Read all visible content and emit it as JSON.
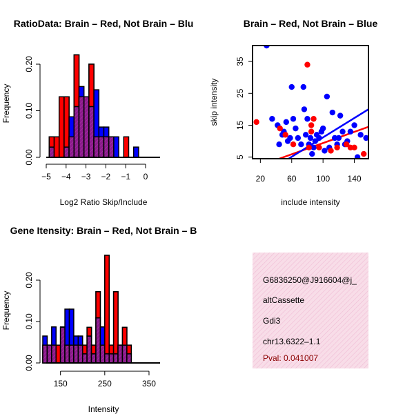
{
  "colors": {
    "red": "#ff0000",
    "blue": "#0000ff",
    "purple": "#8b1a8b",
    "black": "#000000",
    "dark_red": "#8b0000",
    "info_bg": "#f8dde8",
    "hatch": "#f0bcd4"
  },
  "chart_data": [
    {
      "id": "ratio-hist",
      "type": "bar",
      "title": "RatioData: Brain – Red, Not Brain – Blu",
      "xlabel": "Log2 Ratio Skip/Include",
      "ylabel": "Frequency",
      "xlim": [
        -5,
        0.8
      ],
      "ylim": [
        0,
        0.24
      ],
      "xticks": [
        -5,
        -4,
        -3,
        -2,
        -1,
        0
      ],
      "xtick_labels": [
        "−5",
        "−4",
        "−3",
        "−2",
        "−1",
        "0"
      ],
      "yticks": [
        0.0,
        0.1,
        0.2
      ],
      "ytick_labels": [
        "0.00",
        "0.10",
        "0.20"
      ],
      "bins_start": -4.85,
      "bin_width": 0.25,
      "series": [
        {
          "name": "Brain",
          "color": "red",
          "values": [
            0.044,
            0.044,
            0.13,
            0.13,
            0.044,
            0.22,
            0.13,
            0.13,
            0.2,
            0.044,
            0.044,
            0.044,
            0.044,
            0,
            0,
            0.044,
            0,
            0
          ]
        },
        {
          "name": "Not Brain",
          "color": "blue",
          "values": [
            0.022,
            0,
            0,
            0.022,
            0.087,
            0.109,
            0.152,
            0.13,
            0.109,
            0.145,
            0.065,
            0.065,
            0.044,
            0.044,
            0,
            0,
            0,
            0.022
          ]
        }
      ]
    },
    {
      "id": "scatter",
      "type": "scatter",
      "title": "Brain – Red, Not Brain – Blue",
      "xlabel": "include intensity",
      "ylabel": "skip intensity",
      "xlim": [
        10,
        158
      ],
      "ylim": [
        4.5,
        40
      ],
      "xticks": [
        20,
        60,
        100,
        140
      ],
      "yticks": [
        5,
        15,
        25,
        35
      ],
      "series": [
        {
          "name": "Brain",
          "color": "red",
          "points": [
            [
              15,
              16
            ],
            [
              45,
              14
            ],
            [
              52,
              12
            ],
            [
              62,
              9
            ],
            [
              80,
              34
            ],
            [
              82,
              8
            ],
            [
              85,
              13
            ],
            [
              85,
              15
            ],
            [
              88,
              17
            ],
            [
              95,
              8
            ],
            [
              110,
              7
            ],
            [
              118,
              8
            ],
            [
              130,
              9
            ],
            [
              135,
              8
            ],
            [
              140,
              8
            ],
            [
              152,
              6
            ]
          ],
          "fit": [
            [
              10,
              1.5
            ],
            [
              158,
              14.5
            ]
          ]
        },
        {
          "name": "Not Brain",
          "color": "blue",
          "points": [
            [
              28,
              40
            ],
            [
              35,
              17
            ],
            [
              42,
              15
            ],
            [
              44,
              9
            ],
            [
              48,
              12
            ],
            [
              50,
              13
            ],
            [
              53,
              16
            ],
            [
              55,
              10
            ],
            [
              58,
              11
            ],
            [
              60,
              27
            ],
            [
              62,
              17
            ],
            [
              65,
              14
            ],
            [
              68,
              11
            ],
            [
              72,
              9
            ],
            [
              75,
              27
            ],
            [
              76,
              20
            ],
            [
              78,
              12
            ],
            [
              80,
              17
            ],
            [
              82,
              9
            ],
            [
              84,
              11
            ],
            [
              86,
              6
            ],
            [
              88,
              8
            ],
            [
              90,
              10
            ],
            [
              92,
              12
            ],
            [
              95,
              11
            ],
            [
              98,
              13
            ],
            [
              100,
              14
            ],
            [
              102,
              7
            ],
            [
              105,
              24
            ],
            [
              108,
              8
            ],
            [
              112,
              19
            ],
            [
              115,
              11
            ],
            [
              118,
              9
            ],
            [
              120,
              11
            ],
            [
              122,
              18
            ],
            [
              125,
              13
            ],
            [
              128,
              9
            ],
            [
              131,
              10
            ],
            [
              135,
              13
            ],
            [
              140,
              15
            ],
            [
              144,
              5
            ],
            [
              148,
              12
            ],
            [
              155,
              11
            ]
          ],
          "fit": [
            [
              10,
              -2.5
            ],
            [
              158,
              20
            ]
          ]
        }
      ]
    },
    {
      "id": "intensity-hist",
      "type": "bar",
      "title": "Gene Itensity: Brain – Red, Not Brain – B",
      "xlabel": "Intensity",
      "ylabel": "Frequency",
      "xlim": [
        110,
        375
      ],
      "ylim": [
        0,
        0.26
      ],
      "xticks": [
        150,
        250,
        350
      ],
      "yticks": [
        0.0,
        0.1,
        0.2
      ],
      "ytick_labels": [
        "0.00",
        "0.10",
        "0.20"
      ],
      "bins_start": 110,
      "bin_width": 10,
      "series": [
        {
          "name": "Brain",
          "color": "red",
          "values": [
            0.043,
            0.043,
            0.043,
            0.043,
            0.086,
            0.043,
            0.043,
            0.043,
            0.043,
            0.043,
            0.086,
            0.043,
            0.172,
            0.043,
            0.26,
            0.043,
            0.172,
            0.043,
            0.086,
            0.043
          ]
        },
        {
          "name": "Not Brain",
          "color": "blue",
          "values": [
            0.065,
            0.043,
            0.087,
            0,
            0.087,
            0.13,
            0.13,
            0.065,
            0.065,
            0.022,
            0.065,
            0.022,
            0.109,
            0.087,
            0.022,
            0.022,
            0.022,
            0.043,
            0.043,
            0.022
          ]
        }
      ]
    }
  ],
  "info_box": {
    "lines": [
      "G6836250@J916604@j_",
      "altCassette",
      "Gdi3",
      "chr13.6322–1.1"
    ],
    "pval": "Pval: 0.041007"
  }
}
